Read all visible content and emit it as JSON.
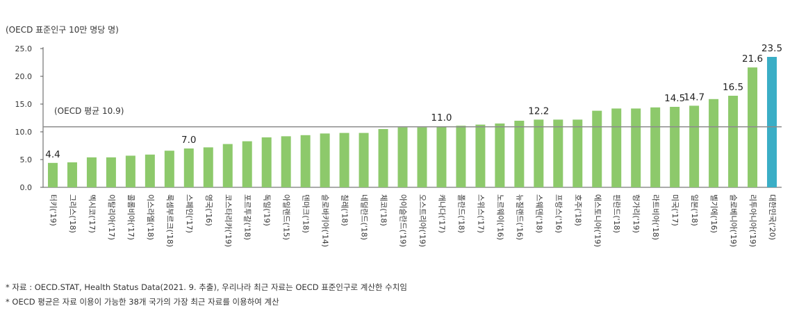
{
  "unit_label": "(OECD 표준인구 10만 명당 명)",
  "notes": [
    "* 자료 : OECD.STAT, Health Status Data(2021. 9. 추출), 우리나라 최근 자료는 OECD 표준인구로 계산한 수치임",
    "* OECD 평균은 자료 이용이 가능한 38개 국가의 가장 최근 자료를 이용하여 계산"
  ],
  "colors": {
    "bar": "#8dc96b",
    "highlight": "#3aaec6",
    "avg_line": "#8c8c8c",
    "axis": "#555555"
  },
  "chart_data": {
    "type": "bar",
    "title": "",
    "xlabel": "",
    "ylabel": "(OECD 표준인구 10만 명당 명)",
    "ylim": [
      0,
      25
    ],
    "yticks": [
      "0.0",
      "5.0",
      "10.0",
      "15.0",
      "20.0",
      "25.0"
    ],
    "grid": false,
    "reference_line": {
      "label": "(OECD 평균 10.9)",
      "value": 10.9
    },
    "categories": [
      "터키('19)",
      "그리스('18)",
      "멕시코('17)",
      "이탈리아('17)",
      "콜롬비아('17)",
      "이스라엘('18)",
      "룩셈부르크('18)",
      "스페인('17)",
      "영국('16)",
      "코스타리카('19)",
      "포르투갈('18)",
      "독일('19)",
      "아일랜드('15)",
      "덴마크('18)",
      "슬로바키아('14)",
      "칠레('18)",
      "네덜란드('18)",
      "체코('18)",
      "아이슬란드('19)",
      "오스트리아('19)",
      "캐나다('17)",
      "폴란드('18)",
      "스위스('17)",
      "노르웨이('16)",
      "뉴질랜드('16)",
      "스웨덴('18)",
      "프랑스('16)",
      "호주('18)",
      "에스토니아('19)",
      "핀란드('18)",
      "헝가리('19)",
      "라트비아('18)",
      "미국('17)",
      "일본('18)",
      "벨기에('16)",
      "슬로베니아('19)",
      "리투아니아('19)",
      "대한민국('20)"
    ],
    "values": [
      4.4,
      4.5,
      5.4,
      5.4,
      5.7,
      5.9,
      6.6,
      7.0,
      7.2,
      7.8,
      8.3,
      9.0,
      9.2,
      9.4,
      9.7,
      9.8,
      9.8,
      10.5,
      10.8,
      10.8,
      11.0,
      11.1,
      11.3,
      11.5,
      12.0,
      12.2,
      12.2,
      12.2,
      13.8,
      14.2,
      14.2,
      14.4,
      14.5,
      14.7,
      15.9,
      16.5,
      21.6,
      23.5
    ],
    "data_labels": {
      "0": "4.4",
      "7": "7.0",
      "20": "11.0",
      "25": "12.2",
      "32": "14.5",
      "33": "14.7",
      "35": "16.5",
      "36": "21.6",
      "37": "23.5"
    },
    "highlight_index": 37
  }
}
